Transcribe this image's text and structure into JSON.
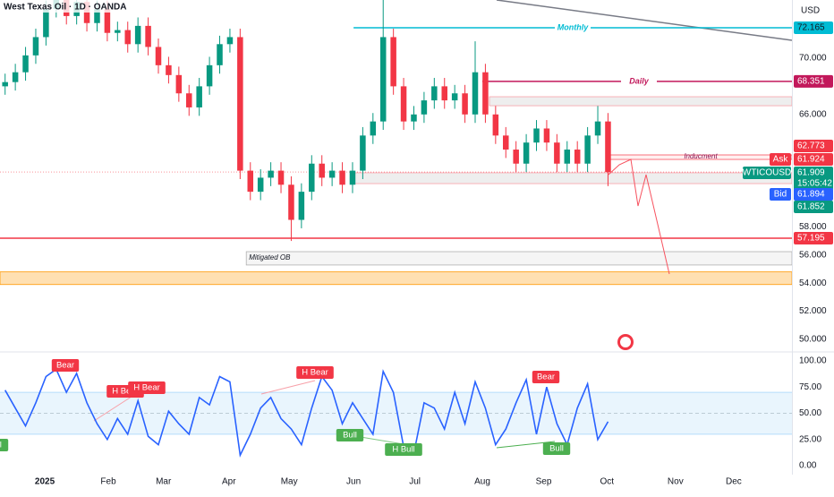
{
  "header": {
    "title": "West Texas Oil · 1D · OANDA",
    "currency": "USD"
  },
  "chart_data": [
    {
      "type": "candlestick",
      "open": [
        68.0,
        68.3,
        69.0,
        70.2,
        71.5,
        73.5,
        74.5,
        73.0,
        74.0,
        72.5,
        73.5,
        71.8,
        72.0,
        71.0,
        72.3,
        70.8,
        69.5,
        68.8,
        67.5,
        66.5,
        68.0,
        69.5,
        71.0,
        71.5,
        62.0,
        60.5,
        61.5,
        62.0,
        61.0,
        58.5,
        60.5,
        62.5,
        61.5,
        62.0,
        61.0,
        62.0,
        64.5,
        65.5,
        71.5,
        68.0,
        65.5,
        66.0,
        67.0,
        68.0,
        67.0,
        67.5,
        66.0,
        69.0,
        66.0,
        64.5,
        63.5,
        62.5,
        64.0,
        65.0,
        64.0,
        62.5,
        63.5,
        62.5,
        64.5,
        65.5
      ],
      "high": [
        68.9,
        69.6,
        70.8,
        72.1,
        74.1,
        75.1,
        75.1,
        74.6,
        74.6,
        74.1,
        74.1,
        72.6,
        72.6,
        72.9,
        72.9,
        71.4,
        70.1,
        69.4,
        68.1,
        68.6,
        70.1,
        71.6,
        72.1,
        72.1,
        62.6,
        62.1,
        62.6,
        62.6,
        61.6,
        61.1,
        63.1,
        63.1,
        62.6,
        62.6,
        62.6,
        65.1,
        66.1,
        75.5,
        72.1,
        68.6,
        66.6,
        67.6,
        68.6,
        68.6,
        68.1,
        68.1,
        71.2,
        69.6,
        66.6,
        65.1,
        64.1,
        64.6,
        65.6,
        65.6,
        64.6,
        64.1,
        64.1,
        65.1,
        66.6,
        66.1
      ],
      "low": [
        67.4,
        67.7,
        68.4,
        69.6,
        70.9,
        72.9,
        72.4,
        72.4,
        71.9,
        71.9,
        71.2,
        71.2,
        70.4,
        70.4,
        70.2,
        68.9,
        68.2,
        66.9,
        65.9,
        65.9,
        67.4,
        68.9,
        70.4,
        61.4,
        59.9,
        59.9,
        60.9,
        60.4,
        57.0,
        57.9,
        59.9,
        60.9,
        60.9,
        60.4,
        60.4,
        61.4,
        63.9,
        64.9,
        67.4,
        64.9,
        64.9,
        65.4,
        66.4,
        66.4,
        66.4,
        65.4,
        65.4,
        65.4,
        63.9,
        62.9,
        61.9,
        61.9,
        63.4,
        63.4,
        61.9,
        61.9,
        61.9,
        61.9,
        63.9,
        60.9
      ],
      "close": [
        68.3,
        69.0,
        70.2,
        71.5,
        73.5,
        74.5,
        73.0,
        74.0,
        72.5,
        73.5,
        71.8,
        72.0,
        71.0,
        72.3,
        70.8,
        69.5,
        68.8,
        67.5,
        66.5,
        68.0,
        69.5,
        71.0,
        71.5,
        62.0,
        60.5,
        61.5,
        62.0,
        61.0,
        58.5,
        60.5,
        62.5,
        61.5,
        62.0,
        61.0,
        62.0,
        64.5,
        65.5,
        71.5,
        68.0,
        65.5,
        66.0,
        67.0,
        68.0,
        67.0,
        67.5,
        66.0,
        69.0,
        66.0,
        64.5,
        63.5,
        62.5,
        64.0,
        65.0,
        64.0,
        62.5,
        63.5,
        62.5,
        64.5,
        65.5,
        61.9
      ],
      "up_color": "#089981",
      "down_color": "#f23645",
      "xlim": [
        -0.5,
        77
      ],
      "ylim": [
        49.17,
        74.14
      ],
      "xticks": [
        {
          "value": 3.88,
          "label": "2025"
        },
        {
          "value": 10.1,
          "label": "Feb"
        },
        {
          "value": 15.5,
          "label": "Mar"
        },
        {
          "value": 21.9,
          "label": "Apr"
        },
        {
          "value": 27.8,
          "label": "May"
        },
        {
          "value": 34.1,
          "label": "Jun"
        },
        {
          "value": 40.1,
          "label": "Jul"
        },
        {
          "value": 46.7,
          "label": "Aug"
        },
        {
          "value": 52.7,
          "label": "Sep"
        },
        {
          "value": 58.9,
          "label": "Oct"
        },
        {
          "value": 65.6,
          "label": "Nov"
        },
        {
          "value": 71.3,
          "label": "Dec"
        }
      ],
      "yticks": [
        {
          "value": 50,
          "label": "50.000"
        },
        {
          "value": 52,
          "label": "52.000"
        },
        {
          "value": 54,
          "label": "54.000"
        },
        {
          "value": 56,
          "label": "56.000"
        },
        {
          "value": 58,
          "label": "58.000"
        },
        {
          "value": 66,
          "label": "66.000"
        },
        {
          "value": 70,
          "label": "70.000"
        }
      ],
      "levels": [
        {
          "label": "Monthly",
          "value": 72.165,
          "color": "#00bcd4",
          "start": 34.1
        },
        {
          "label": "Daily",
          "value": 68.351,
          "color": "#c2185b",
          "start": 46.7
        },
        {
          "value": 57.195,
          "color": "#f23645",
          "start": -0.5
        }
      ],
      "zones": [
        {
          "low": 53.9,
          "high": 54.8,
          "color": "#ffe0b2",
          "edge": "#ff9800",
          "start": -0.5
        },
        {
          "label": "Mitigated OB",
          "low": 55.29,
          "high": 56.24,
          "color": "#f5f5f5",
          "edge": "#b0b0b0",
          "start": 23.6
        },
        {
          "low": 61.08,
          "high": 61.85,
          "color": "#eeeeee",
          "edge": "#f7a0a8",
          "start": 33.9
        },
        {
          "low": 66.62,
          "high": 67.26,
          "color": "#eeeeee",
          "edge": "#f7a0a8",
          "start": 47.4
        },
        {
          "label": "Inducment",
          "low": 62.8,
          "high": 63.12,
          "color": "#fff0f0",
          "edge": "#f7525f",
          "start": 59
        }
      ],
      "quotes": [
        {
          "value": 62.773,
          "color": "#f23645"
        },
        {
          "tag": "Ask",
          "value": 61.924,
          "color": "#f23645"
        },
        {
          "tag": "WTICOUSD",
          "value": 61.909,
          "countdown": "15:05:42",
          "color": "#089981"
        },
        {
          "tag": "Bid",
          "value": 61.894,
          "color": "#2962ff"
        },
        {
          "value": 61.852,
          "color": "#089981"
        }
      ]
    },
    {
      "type": "line",
      "values": [
        72,
        55,
        38,
        60,
        85,
        92,
        70,
        88,
        60,
        40,
        25,
        45,
        30,
        62,
        28,
        20,
        52,
        40,
        30,
        65,
        58,
        85,
        80,
        10,
        30,
        55,
        65,
        45,
        35,
        20,
        55,
        85,
        72,
        40,
        60,
        45,
        30,
        90,
        70,
        18,
        12,
        60,
        55,
        35,
        70,
        40,
        80,
        55,
        20,
        35,
        60,
        82,
        30,
        75,
        40,
        20,
        55,
        78,
        25,
        42
      ],
      "color": "#2962ff",
      "xlim": [
        -0.5,
        77
      ],
      "ylim": [
        -8.5,
        106.8
      ],
      "band": [
        30,
        70
      ],
      "yticks": [
        {
          "value": 0,
          "label": "0.00"
        },
        {
          "value": 25,
          "label": "25.00"
        },
        {
          "value": 50,
          "label": "50.00"
        },
        {
          "value": 75,
          "label": "75.00"
        },
        {
          "value": 100,
          "label": "100.00"
        }
      ],
      "signals": [
        "Bear",
        "H Bear",
        "H Bear",
        "H Bear",
        "Bear",
        "Bull",
        "Bull",
        "H Bull",
        "Bull"
      ]
    }
  ]
}
